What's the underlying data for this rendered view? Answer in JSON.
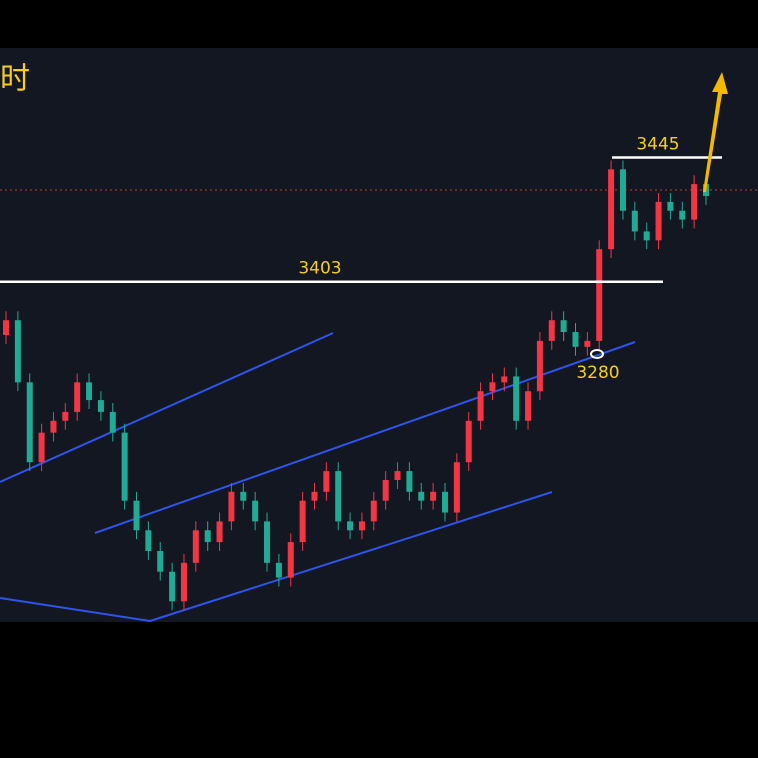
{
  "chart_data": {
    "type": "candlestick",
    "title": "时",
    "open": [
      3385,
      3390,
      3369,
      3342,
      3352,
      3356,
      3359,
      3369,
      3363,
      3359,
      3352,
      3329,
      3319,
      3312,
      3305,
      3295,
      3308,
      3319,
      3315,
      3322,
      3332,
      3329,
      3322,
      3308,
      3303,
      3315,
      3329,
      3332,
      3339,
      3322,
      3319,
      3322,
      3329,
      3336,
      3339,
      3332,
      3329,
      3332,
      3325,
      3342,
      3356,
      3366,
      3369,
      3371,
      3356,
      3366,
      3383,
      3390,
      3386,
      3381,
      3383,
      3414,
      3441,
      3427,
      3420,
      3417,
      3430,
      3427,
      3424,
      3436
    ],
    "high": [
      3393,
      3393,
      3372,
      3355,
      3359,
      3362,
      3372,
      3372,
      3366,
      3362,
      3355,
      3332,
      3322,
      3315,
      3308,
      3311,
      3322,
      3322,
      3325,
      3335,
      3335,
      3332,
      3325,
      3311,
      3318,
      3332,
      3335,
      3342,
      3342,
      3325,
      3325,
      3332,
      3339,
      3342,
      3342,
      3335,
      3335,
      3335,
      3345,
      3359,
      3369,
      3372,
      3374,
      3374,
      3369,
      3386,
      3393,
      3393,
      3389,
      3386,
      3417,
      3444,
      3444,
      3430,
      3423,
      3433,
      3433,
      3430,
      3439,
      3439
    ],
    "low": [
      3382,
      3366,
      3339,
      3339,
      3349,
      3353,
      3356,
      3360,
      3356,
      3349,
      3326,
      3316,
      3309,
      3302,
      3292,
      3292,
      3305,
      3312,
      3312,
      3319,
      3326,
      3319,
      3305,
      3300,
      3300,
      3312,
      3326,
      3329,
      3319,
      3316,
      3316,
      3319,
      3326,
      3333,
      3329,
      3326,
      3326,
      3322,
      3322,
      3339,
      3353,
      3363,
      3366,
      3353,
      3353,
      3363,
      3380,
      3383,
      3378,
      3378,
      3380,
      3411,
      3424,
      3417,
      3414,
      3414,
      3424,
      3421,
      3421,
      3429
    ],
    "close": [
      3390,
      3369,
      3342,
      3352,
      3356,
      3359,
      3369,
      3363,
      3359,
      3352,
      3329,
      3319,
      3312,
      3305,
      3295,
      3308,
      3319,
      3315,
      3322,
      3332,
      3329,
      3322,
      3308,
      3303,
      3315,
      3329,
      3332,
      3339,
      3322,
      3319,
      3322,
      3329,
      3336,
      3339,
      3332,
      3329,
      3332,
      3325,
      3342,
      3356,
      3366,
      3369,
      3371,
      3356,
      3366,
      3383,
      3390,
      3386,
      3381,
      3383,
      3414,
      3441,
      3427,
      3420,
      3417,
      3430,
      3427,
      3424,
      3436,
      3432
    ],
    "ylim": [
      3288,
      3482
    ],
    "colors": {
      "up": "#f23645",
      "down": "#22ab94"
    },
    "levels": [
      3445,
      3403
    ],
    "annotations": [
      3280
    ]
  }
}
